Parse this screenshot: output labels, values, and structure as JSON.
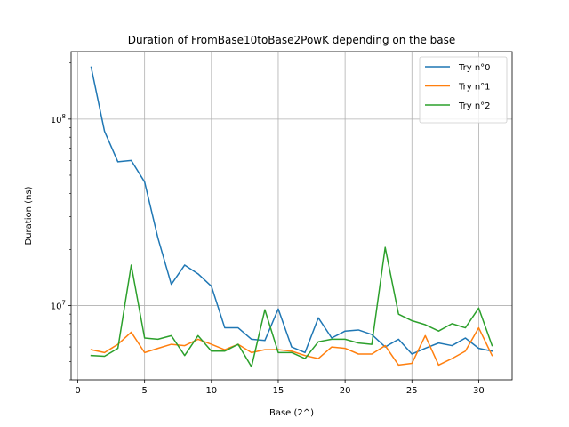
{
  "chart_data": {
    "type": "line",
    "title": "Duration of FromBase10toBase2PowK depending on the base",
    "xlabel": "Base (2^)",
    "ylabel": "Duration (ns)",
    "xscale": "linear",
    "yscale": "log",
    "xlim": [
      -0.5,
      32.5
    ],
    "ylim": [
      4000000,
      230000000
    ],
    "xticks": [
      0,
      5,
      10,
      15,
      20,
      25,
      30
    ],
    "xtick_labels": [
      "0",
      "5",
      "10",
      "15",
      "20",
      "25",
      "30"
    ],
    "yticks": [
      10000000,
      100000000
    ],
    "ytick_labels": [
      {
        "base": "10",
        "exp": "7"
      },
      {
        "base": "10",
        "exp": "8"
      }
    ],
    "grid": true,
    "legend_position": "top-right",
    "x": [
      1,
      2,
      3,
      4,
      5,
      6,
      7,
      8,
      9,
      10,
      11,
      12,
      13,
      14,
      15,
      16,
      17,
      18,
      19,
      20,
      21,
      22,
      23,
      24,
      25,
      26,
      27,
      28,
      29,
      30,
      31
    ],
    "series": [
      {
        "name": "Try n°0",
        "color": "#1f77b4",
        "values": [
          190000000,
          86000000,
          59000000,
          60000000,
          46000000,
          23000000,
          13000000,
          16500000,
          14800000,
          12700000,
          7600000,
          7600000,
          6600000,
          6500000,
          9600000,
          6000000,
          5600000,
          8600000,
          6700000,
          7300000,
          7400000,
          7000000,
          6000000,
          6600000,
          5500000,
          5900000,
          6300000,
          6100000,
          6700000,
          5900000,
          5700000
        ]
      },
      {
        "name": "Try n°1",
        "color": "#ff7f0e",
        "values": [
          5800000,
          5600000,
          6200000,
          7200000,
          5600000,
          5900000,
          6200000,
          6100000,
          6600000,
          6200000,
          5800000,
          6200000,
          5600000,
          5800000,
          5800000,
          5700000,
          5400000,
          5200000,
          6000000,
          5900000,
          5500000,
          5500000,
          6100000,
          4800000,
          4900000,
          6900000,
          4800000,
          5200000,
          5700000,
          7600000,
          5400000
        ]
      },
      {
        "name": "Try n°2",
        "color": "#2ca02c",
        "values": [
          5400000,
          5350000,
          5900000,
          16500000,
          6700000,
          6600000,
          6900000,
          5400000,
          6900000,
          5700000,
          5700000,
          6200000,
          4700000,
          9500000,
          5600000,
          5600000,
          5200000,
          6400000,
          6600000,
          6600000,
          6300000,
          6200000,
          20500000,
          9000000,
          8300000,
          7900000,
          7300000,
          8000000,
          7600000,
          9700000,
          6100000
        ]
      }
    ]
  }
}
